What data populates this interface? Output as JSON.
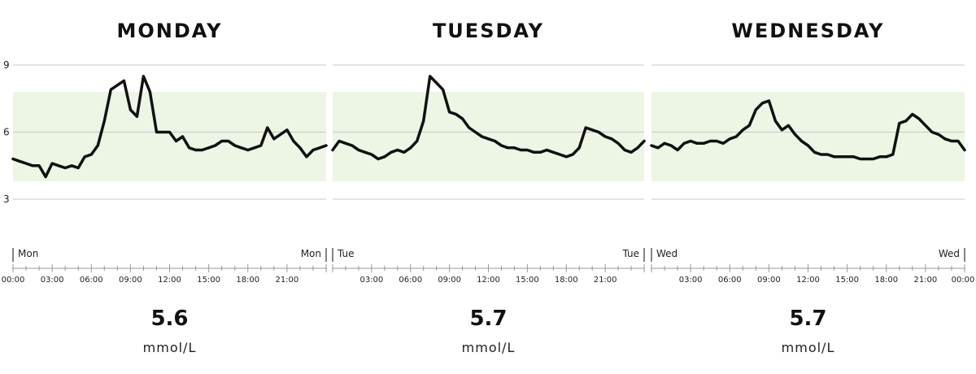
{
  "colors": {
    "range": "#edf5e4",
    "line": "#111111",
    "grid": "#c8c8c8",
    "axis": "#999999"
  },
  "chart_data": {
    "type": "line",
    "y_ticks": [
      3,
      6,
      9
    ],
    "ylim": [
      3,
      9
    ],
    "target_range": [
      3.8,
      7.8
    ],
    "x_tick_labels": [
      "00:00",
      "03:00",
      "06:00",
      "09:00",
      "12:00",
      "15:00",
      "18:00",
      "21:00",
      "00:00"
    ],
    "panels": [
      {
        "title": "MONDAY",
        "start_label": "Mon",
        "end_label": "Mon",
        "show_start_time": true,
        "show_end_time": false,
        "average": "5.6",
        "unit": "mmol/L",
        "x": [
          0,
          0.5,
          1,
          1.5,
          2,
          2.5,
          3,
          3.5,
          4,
          4.5,
          5,
          5.5,
          6,
          6.5,
          7,
          7.5,
          8,
          8.5,
          9,
          9.5,
          10,
          10.5,
          11,
          11.5,
          12,
          12.5,
          13,
          13.5,
          14,
          14.5,
          15,
          15.5,
          16,
          16.5,
          17,
          17.5,
          18,
          18.5,
          19,
          19.5,
          20,
          20.5,
          21,
          21.5,
          22,
          22.5,
          23,
          23.5,
          24
        ],
        "y": [
          4.8,
          4.7,
          4.6,
          4.5,
          4.5,
          4.0,
          4.6,
          4.5,
          4.4,
          4.5,
          4.4,
          4.9,
          5.0,
          5.4,
          6.5,
          7.9,
          8.1,
          8.3,
          7.0,
          6.7,
          8.5,
          7.8,
          6.0,
          6.0,
          6.0,
          5.6,
          5.8,
          5.3,
          5.2,
          5.2,
          5.3,
          5.4,
          5.6,
          5.6,
          5.4,
          5.3,
          5.2,
          5.3,
          5.4,
          6.2,
          5.7,
          5.9,
          6.1,
          5.6,
          5.3,
          4.9,
          5.2,
          5.3,
          5.4
        ]
      },
      {
        "title": "TUESDAY",
        "start_label": "Tue",
        "end_label": "Tue",
        "show_start_time": false,
        "show_end_time": false,
        "average": "5.7",
        "unit": "mmol/L",
        "x": [
          0,
          0.5,
          1,
          1.5,
          2,
          2.5,
          3,
          3.5,
          4,
          4.5,
          5,
          5.5,
          6,
          6.5,
          7,
          7.5,
          8,
          8.5,
          9,
          9.5,
          10,
          10.5,
          11,
          11.5,
          12,
          12.5,
          13,
          13.5,
          14,
          14.5,
          15,
          15.5,
          16,
          16.5,
          17,
          17.5,
          18,
          18.5,
          19,
          19.5,
          20,
          20.5,
          21,
          21.5,
          22,
          22.5,
          23,
          23.5,
          24
        ],
        "y": [
          5.2,
          5.6,
          5.5,
          5.4,
          5.2,
          5.1,
          5.0,
          4.8,
          4.9,
          5.1,
          5.2,
          5.1,
          5.3,
          5.6,
          6.5,
          8.5,
          8.2,
          7.9,
          6.9,
          6.8,
          6.6,
          6.2,
          6.0,
          5.8,
          5.7,
          5.6,
          5.4,
          5.3,
          5.3,
          5.2,
          5.2,
          5.1,
          5.1,
          5.2,
          5.1,
          5.0,
          4.9,
          5.0,
          5.3,
          6.2,
          6.1,
          6.0,
          5.8,
          5.7,
          5.5,
          5.2,
          5.1,
          5.3,
          5.6
        ]
      },
      {
        "title": "WEDNESDAY",
        "start_label": "Wed",
        "end_label": "Wed",
        "show_start_time": false,
        "show_end_time": true,
        "average": "5.7",
        "unit": "mmol/L",
        "x": [
          0,
          0.5,
          1,
          1.5,
          2,
          2.5,
          3,
          3.5,
          4,
          4.5,
          5,
          5.5,
          6,
          6.5,
          7,
          7.5,
          8,
          8.5,
          9,
          9.5,
          10,
          10.5,
          11,
          11.5,
          12,
          12.5,
          13,
          13.5,
          14,
          14.5,
          15,
          15.5,
          16,
          16.5,
          17,
          17.5,
          18,
          18.5,
          19,
          19.5,
          20,
          20.5,
          21,
          21.5,
          22,
          22.5,
          23,
          23.5,
          24
        ],
        "y": [
          5.4,
          5.3,
          5.5,
          5.4,
          5.2,
          5.5,
          5.6,
          5.5,
          5.5,
          5.6,
          5.6,
          5.5,
          5.7,
          5.8,
          6.1,
          6.3,
          7.0,
          7.3,
          7.4,
          6.5,
          6.1,
          6.3,
          5.9,
          5.6,
          5.4,
          5.1,
          5.0,
          5.0,
          4.9,
          4.9,
          4.9,
          4.9,
          4.8,
          4.8,
          4.8,
          4.9,
          4.9,
          5.0,
          6.4,
          6.5,
          6.8,
          6.6,
          6.3,
          6.0,
          5.9,
          5.7,
          5.6,
          5.6,
          5.2
        ]
      }
    ]
  }
}
